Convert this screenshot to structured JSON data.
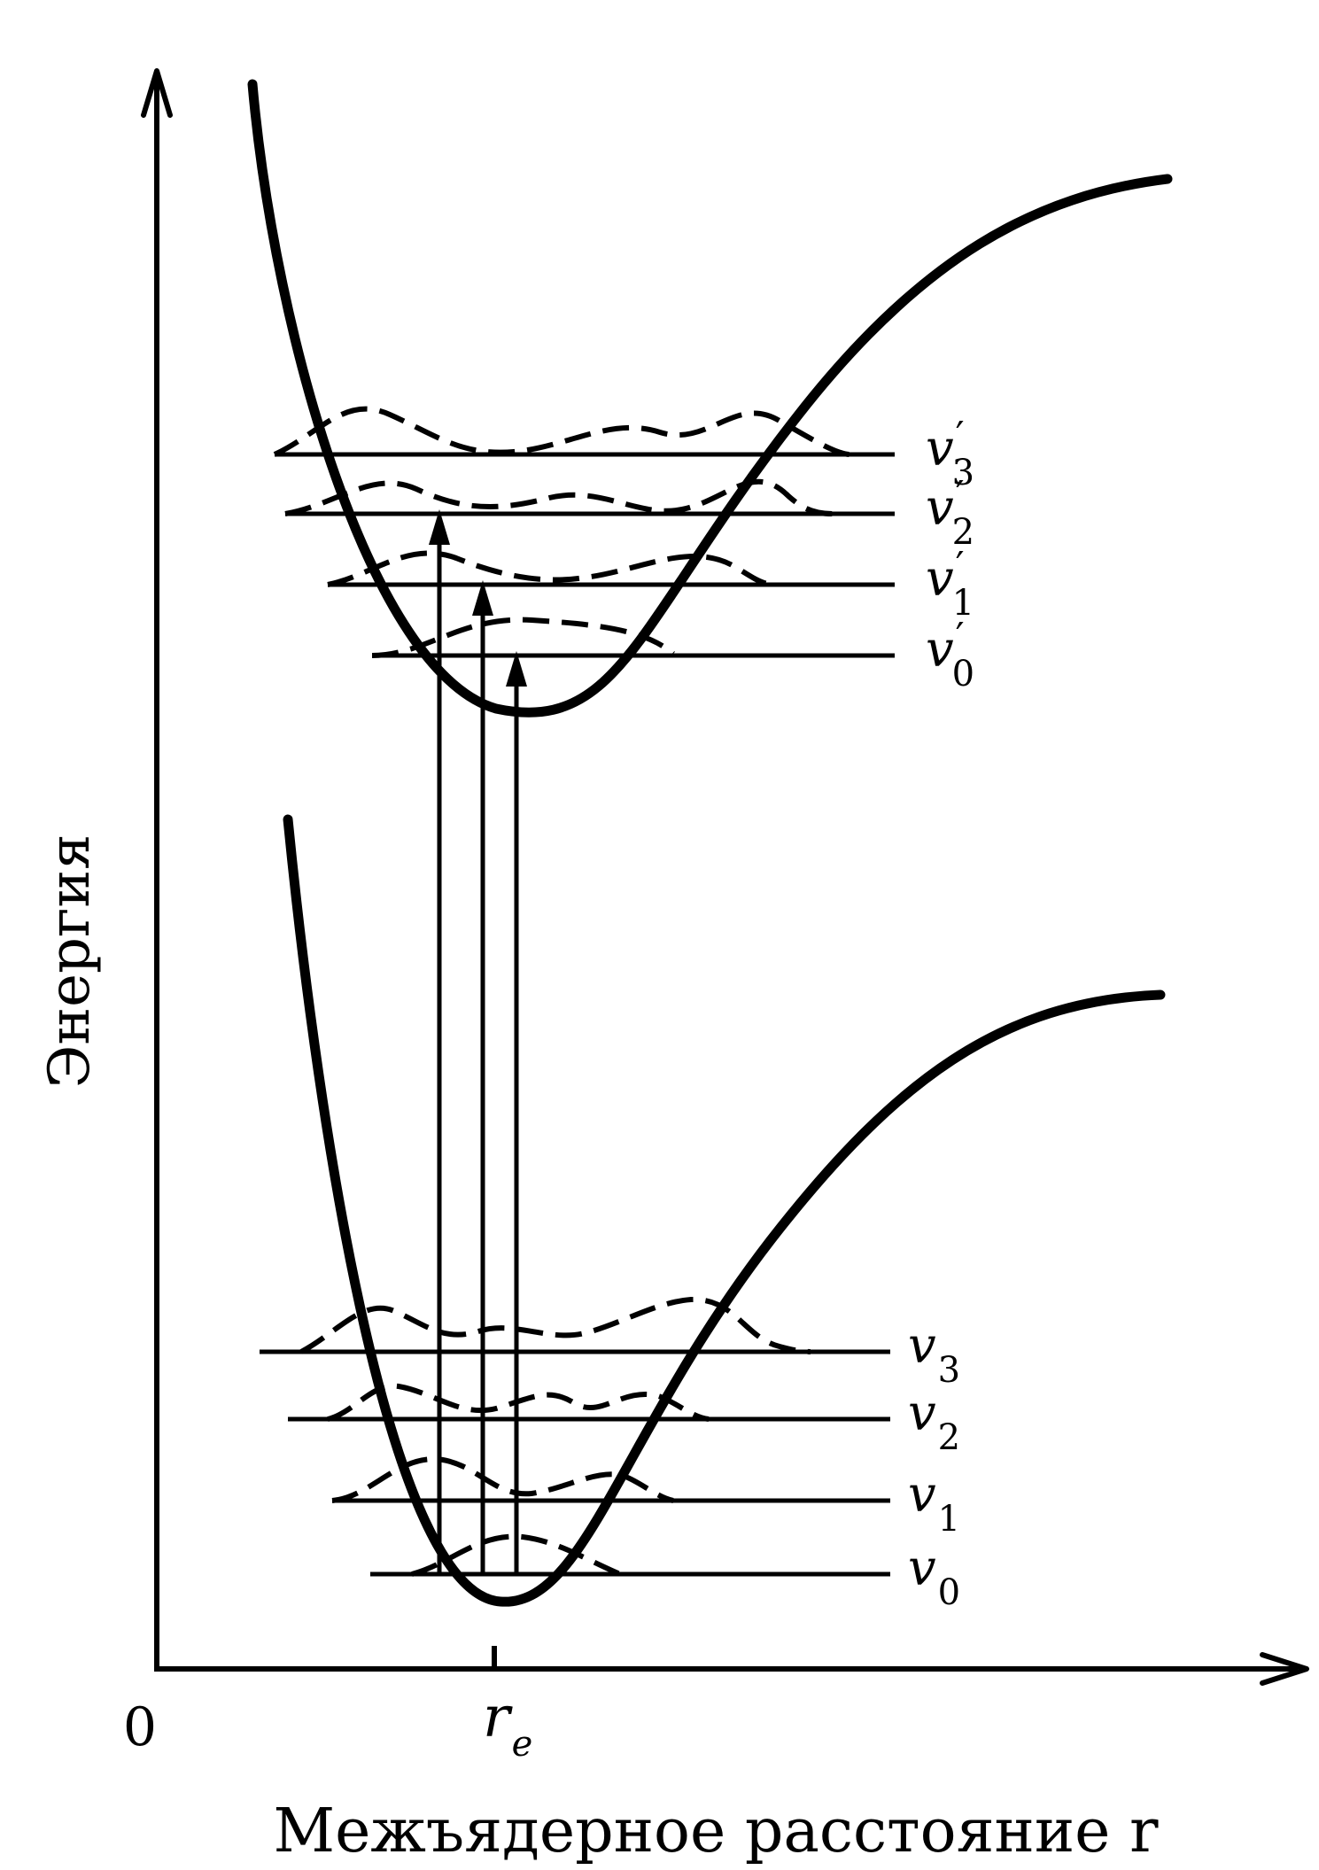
{
  "axes": {
    "ylabel": "Энергия",
    "xlabel": "Межъядерное расстояние r",
    "origin": "0",
    "re_label": "r",
    "re_subscript": "e"
  },
  "upper_levels": [
    {
      "label": "v",
      "sub": "3",
      "prime": "′"
    },
    {
      "label": "v",
      "sub": "2",
      "prime": "′"
    },
    {
      "label": "v",
      "sub": "1",
      "prime": "′"
    },
    {
      "label": "v",
      "sub": "0",
      "prime": "′"
    }
  ],
  "lower_levels": [
    {
      "label": "v",
      "sub": "3"
    },
    {
      "label": "v",
      "sub": "2"
    },
    {
      "label": "v",
      "sub": "1"
    },
    {
      "label": "v",
      "sub": "0"
    }
  ]
}
